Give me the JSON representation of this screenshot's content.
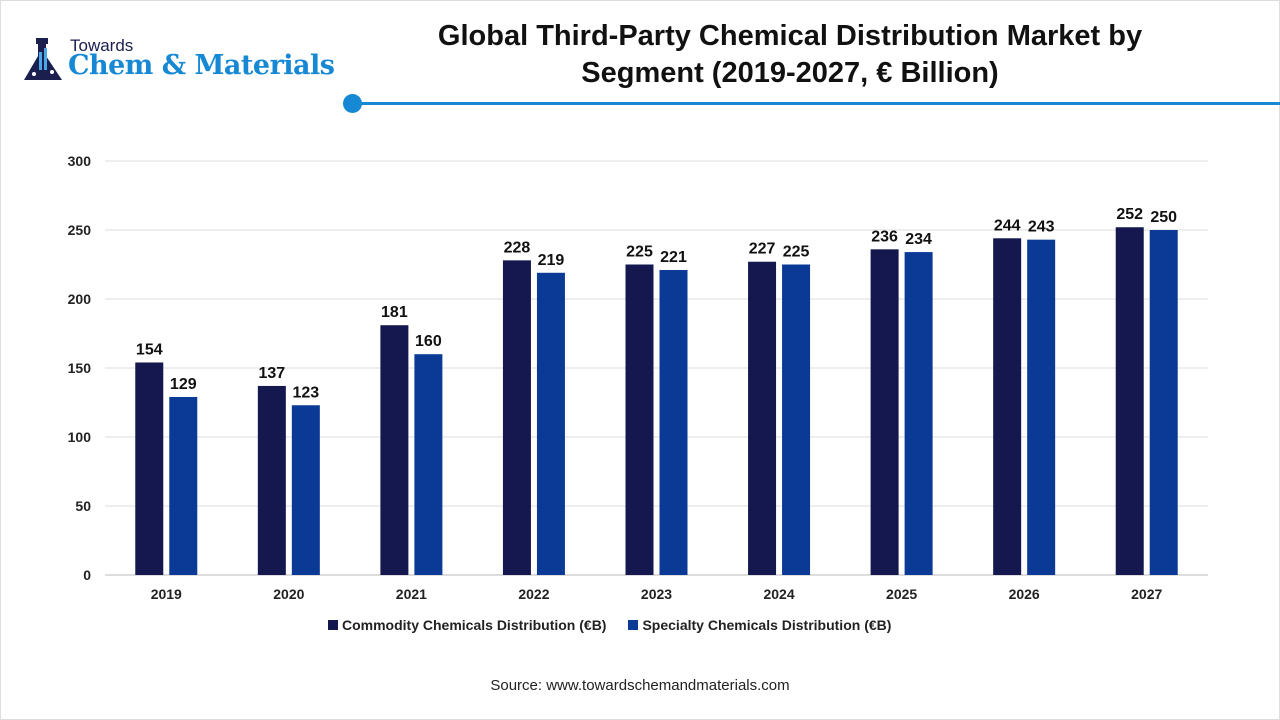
{
  "logo": {
    "top": "Towards",
    "main": "Chem & Materials"
  },
  "title_line1": "Global Third-Party Chemical Distribution Market by",
  "title_line2": "Segment (2019-2027, € Billion)",
  "source": "Source: www.towardschemandmaterials.com",
  "chart_data": {
    "type": "bar",
    "title": "Global Third-Party Chemical Distribution Market by Segment (2019-2027, € Billion)",
    "categories": [
      "2019",
      "2020",
      "2021",
      "2022",
      "2023",
      "2024",
      "2025",
      "2026",
      "2027"
    ],
    "series": [
      {
        "name": "Commodity Chemicals Distribution (€B)",
        "color": "#14184f",
        "values": [
          154,
          137,
          181,
          228,
          225,
          227,
          236,
          244,
          252
        ]
      },
      {
        "name": "Specialty Chemicals Distribution (€B)",
        "color": "#0b3a96",
        "values": [
          129,
          123,
          160,
          219,
          221,
          225,
          234,
          243,
          250
        ]
      }
    ],
    "ylim": [
      0,
      300
    ],
    "yticks": [
      0,
      50,
      100,
      150,
      200,
      250,
      300
    ],
    "grid": true,
    "legend": "bottom",
    "data_labels": true
  }
}
